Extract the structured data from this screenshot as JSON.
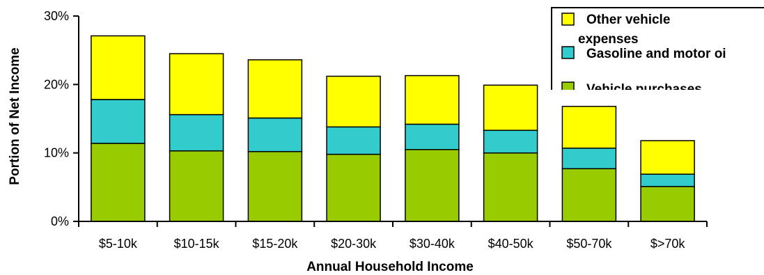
{
  "chart_data": {
    "type": "bar",
    "stacked": true,
    "categories": [
      "$5-10k",
      "$10-15k",
      "$15-20k",
      "$20-30k",
      "$30-40k",
      "$40-50k",
      "$50-70k",
      "$>70k"
    ],
    "series": [
      {
        "name": "Vehicle purchases",
        "color": "#99cc00",
        "values": [
          11.4,
          10.3,
          10.2,
          9.8,
          10.5,
          10.0,
          7.7,
          5.1
        ]
      },
      {
        "name": "Gasoline and motor oil",
        "color": "#33cccc",
        "values": [
          6.4,
          5.3,
          4.9,
          4.0,
          3.7,
          3.3,
          3.0,
          1.8
        ]
      },
      {
        "name": "Other vehicle expenses",
        "color": "#ffff00",
        "values": [
          9.3,
          8.9,
          8.5,
          7.4,
          7.1,
          6.6,
          6.1,
          4.9
        ]
      }
    ],
    "legend_order": [
      "Other vehicle expenses",
      "Gasoline and motor oil",
      "Vehicle purchases"
    ],
    "legend_labels": [
      "Other vehicle",
      "expenses",
      "Gasoline and motor oi",
      "Vehicle purchases"
    ],
    "legend_placement": "top-right",
    "xlabel": "Annual Household Income",
    "ylabel": "Portion of Net Income",
    "ylim": [
      0,
      30
    ],
    "yticks": [
      "0%",
      "10%",
      "20%",
      "30%"
    ],
    "grid": false
  }
}
